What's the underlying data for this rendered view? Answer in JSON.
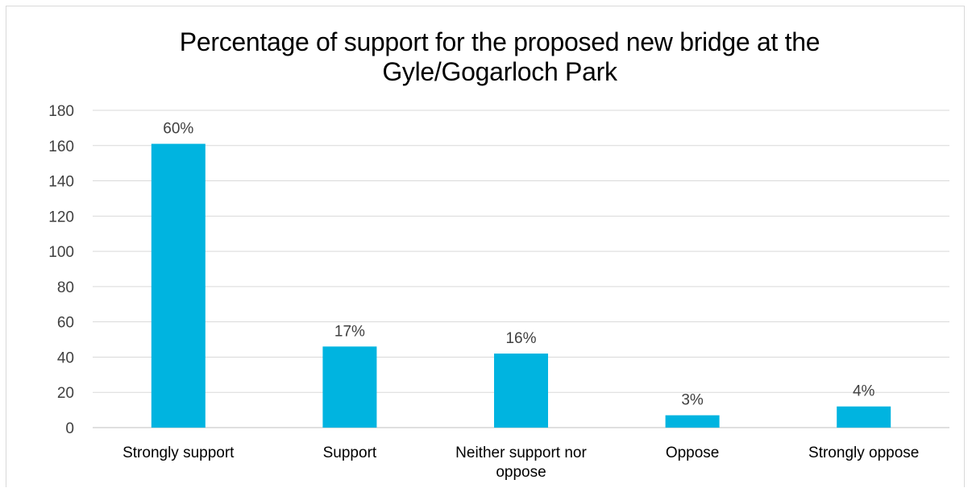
{
  "chart_data": {
    "type": "bar",
    "title_lines": [
      "Percentage of support for the proposed new bridge at the",
      "Gyle/Gogarloch Park"
    ],
    "categories": [
      [
        "Strongly support"
      ],
      [
        "Support"
      ],
      [
        "Neither support nor",
        "oppose"
      ],
      [
        "Oppose"
      ],
      [
        "Strongly oppose"
      ]
    ],
    "values": [
      161,
      46,
      42,
      7,
      12
    ],
    "data_labels": [
      "60%",
      "17%",
      "16%",
      "3%",
      "4%"
    ],
    "y_ticks": [
      "0",
      "20",
      "40",
      "60",
      "80",
      "100",
      "120",
      "140",
      "160",
      "180"
    ],
    "ylim": [
      0,
      180
    ],
    "grid": true,
    "legend": "none",
    "colors": {
      "bar": "#00b4e0",
      "grid": "#d9d9d9",
      "axis": "#bfbfbf",
      "text": "#404040"
    }
  }
}
